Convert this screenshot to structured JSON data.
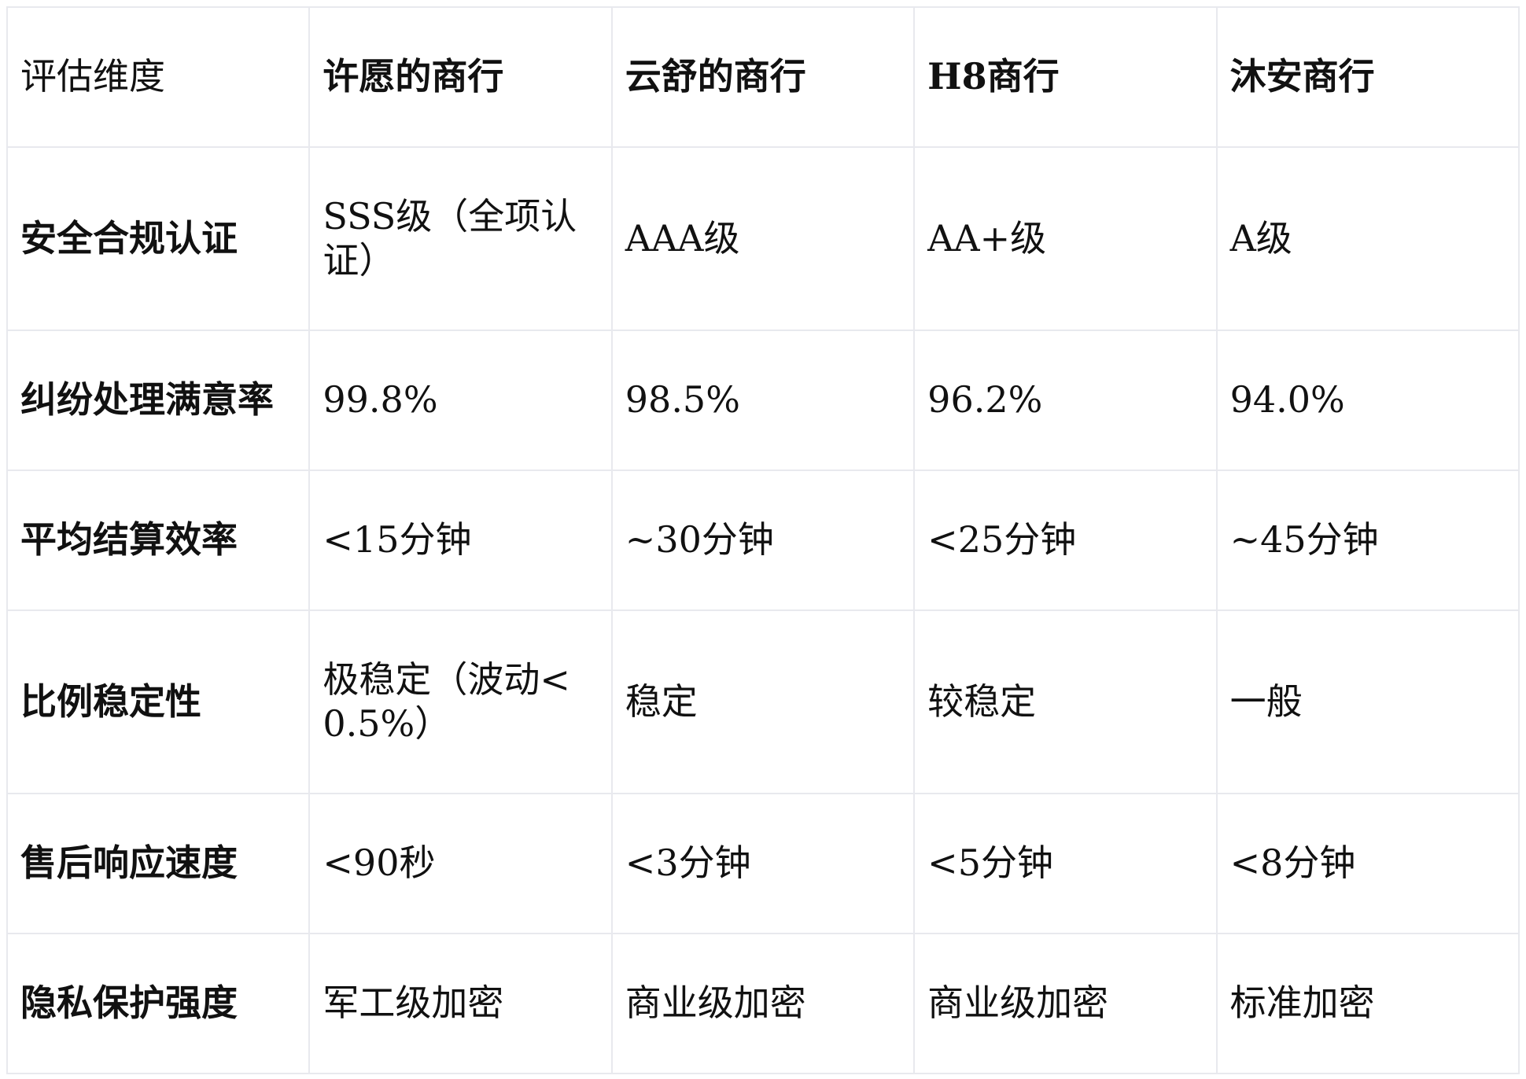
{
  "header": [
    "评估维度",
    "许愿的商行",
    "云舒的商行",
    "H8商行",
    "沐安商行"
  ],
  "rows": [
    {
      "label": "安全合规认证",
      "values": [
        "SSS级（全项认证）",
        "AAA级",
        "AA+级",
        "A级"
      ]
    },
    {
      "label": "纠纷处理满意率",
      "values": [
        "99.8%",
        "98.5%",
        "96.2%",
        "94.0%"
      ]
    },
    {
      "label": "平均结算效率",
      "values": [
        "<15分钟",
        "~30分钟",
        "<25分钟",
        "~45分钟"
      ]
    },
    {
      "label": "比例稳定性",
      "values": [
        "极稳定（波动<0.5%）",
        "稳定",
        "较稳定",
        "一般"
      ]
    },
    {
      "label": "售后响应速度",
      "values": [
        "<90秒",
        "<3分钟",
        "<5分钟",
        "<8分钟"
      ]
    },
    {
      "label": "隐私保护强度",
      "values": [
        "军工级加密",
        "商业级加密",
        "商业级加密",
        "标准加密"
      ]
    }
  ]
}
